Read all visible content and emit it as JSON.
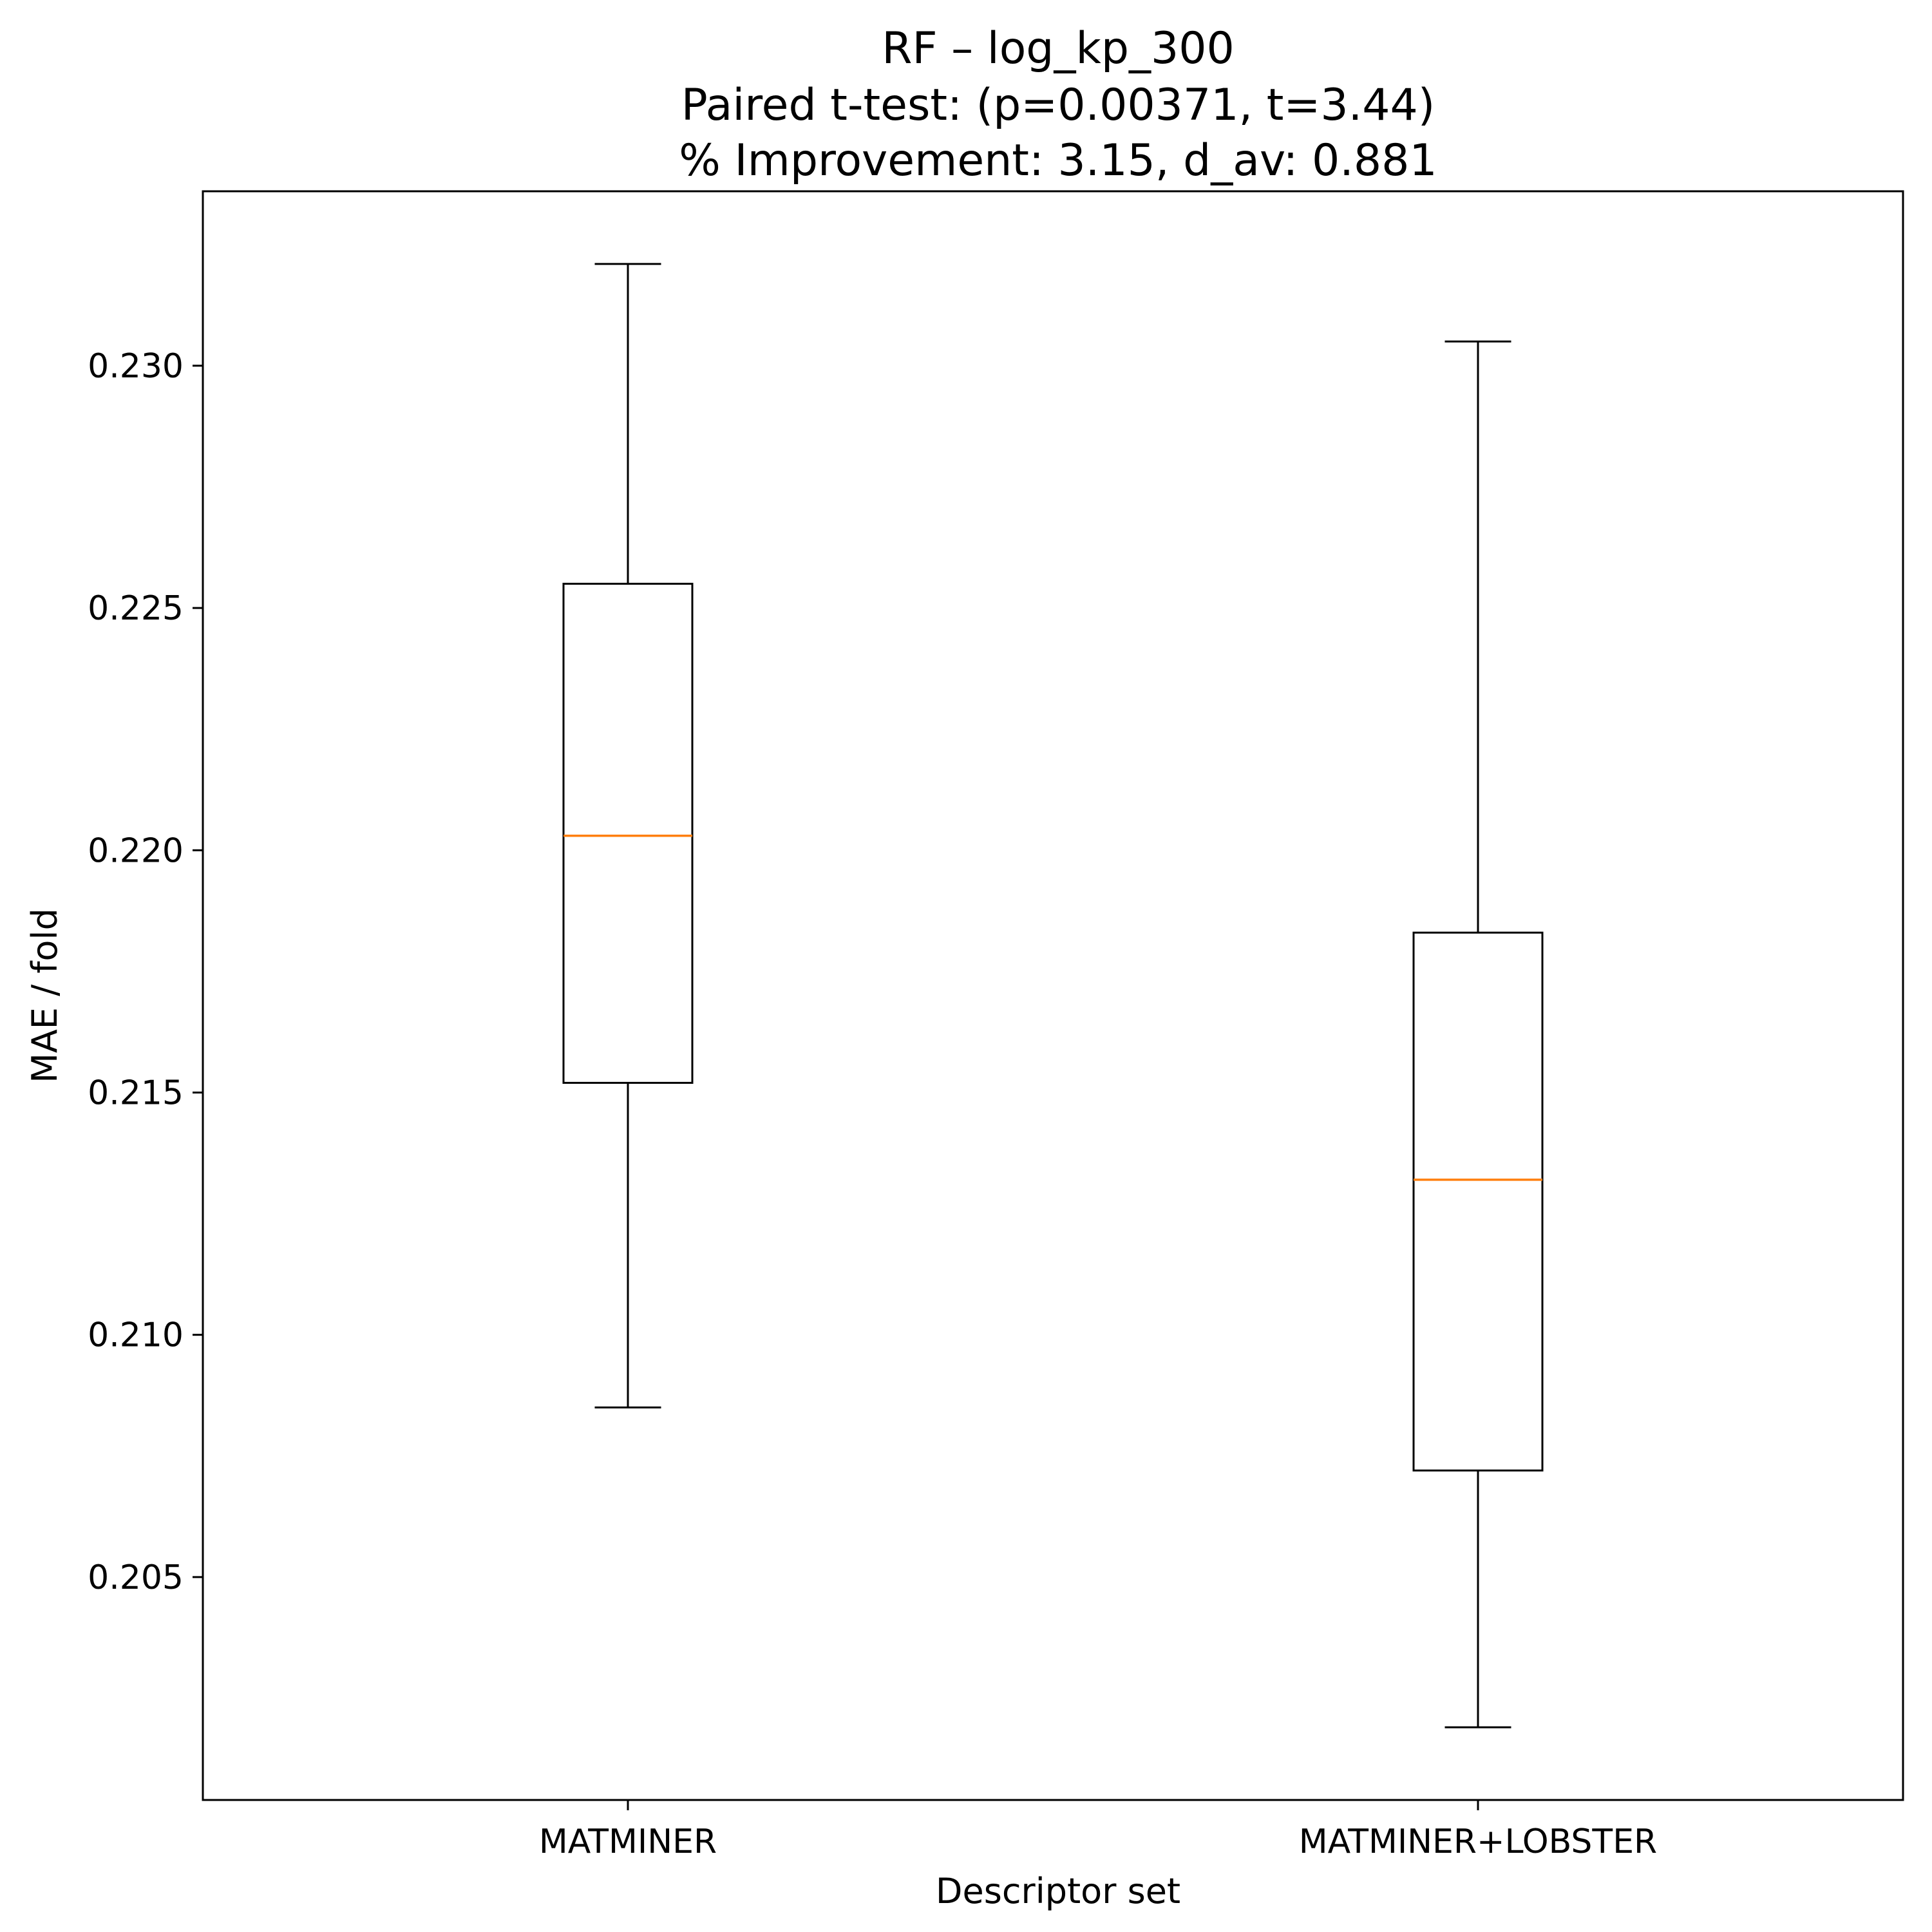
{
  "chart_data": {
    "type": "box",
    "title": "RF – log_kp_300",
    "subtitle_lines": [
      "Paired t-test: (p=0.00371, t=3.44)",
      "% Improvement: 3.15, d_av: 0.881"
    ],
    "xlabel": "Descriptor set",
    "ylabel": "MAE / fold",
    "categories": [
      "MATMINER",
      "MATMINER+LOBSTER"
    ],
    "series": [
      {
        "name": "MATMINER",
        "whisker_low": 0.2085,
        "q1": 0.2152,
        "median": 0.2203,
        "q3": 0.2255,
        "whisker_high": 0.2321
      },
      {
        "name": "MATMINER+LOBSTER",
        "whisker_low": 0.2019,
        "q1": 0.2072,
        "median": 0.2132,
        "q3": 0.2183,
        "whisker_high": 0.2305
      }
    ],
    "yticks": [
      0.205,
      0.21,
      0.215,
      0.22,
      0.225,
      0.23
    ],
    "ytick_labels": [
      "0.205",
      "0.210",
      "0.215",
      "0.220",
      "0.225",
      "0.230"
    ],
    "ylim": [
      0.2004,
      0.2336
    ],
    "grid": false,
    "legend": null,
    "colors": {
      "box": "#000000",
      "median": "#ff7f0e",
      "background": "#ffffff"
    }
  }
}
